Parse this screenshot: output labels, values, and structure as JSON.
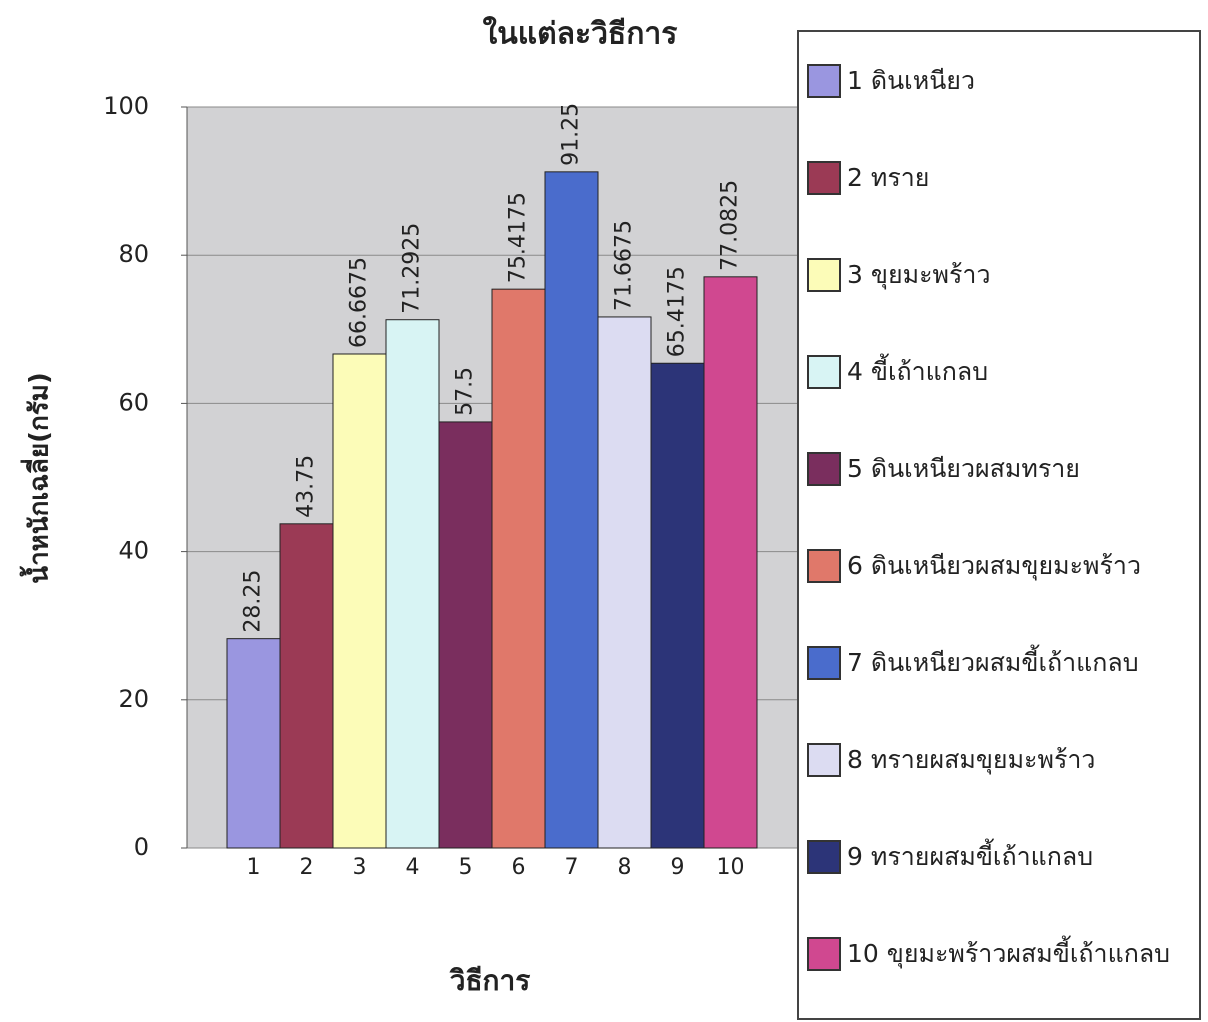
{
  "chart_data": {
    "type": "bar",
    "title": "ในแต่ละวิธีการ",
    "x_label": "วิธีการ",
    "y_label": "น้ำหนักเฉลี่ย(กรัม)",
    "categories": [
      "1",
      "2",
      "3",
      "4",
      "5",
      "6",
      "7",
      "8",
      "9",
      "10"
    ],
    "values": [
      28.25,
      43.75,
      66.6675,
      71.2925,
      57.5,
      75.4175,
      91.25,
      71.6675,
      65.4175,
      77.0825
    ],
    "colors": [
      "#9a96e0",
      "#9b3a55",
      "#fcfcb8",
      "#d8f4f4",
      "#7a2e5e",
      "#e0786a",
      "#4a6ccc",
      "#dcdcf2",
      "#2c3478",
      "#d04890"
    ],
    "legend": [
      "1 ดินเหนียว",
      "2 ทราย",
      "3 ขุยมะพร้าว",
      "4 ขี้เถ้าแกลบ",
      "5 ดินเหนียวผสมทราย",
      "6 ดินเหนียวผสมขุยมะพร้าว",
      "7 ดินเหนียวผสมขี้เถ้าแกลบ",
      "8 ทรายผสมขุยมะพร้าว",
      "9 ทรายผสมขี้เถ้าแกลบ",
      "10 ขุยมะพร้าวผสมขี้เถ้าแกลบ"
    ],
    "ylim": [
      0,
      100
    ],
    "yticks": [
      0,
      20,
      40,
      60,
      80,
      100
    ],
    "grid": true,
    "legend_position": "right"
  }
}
